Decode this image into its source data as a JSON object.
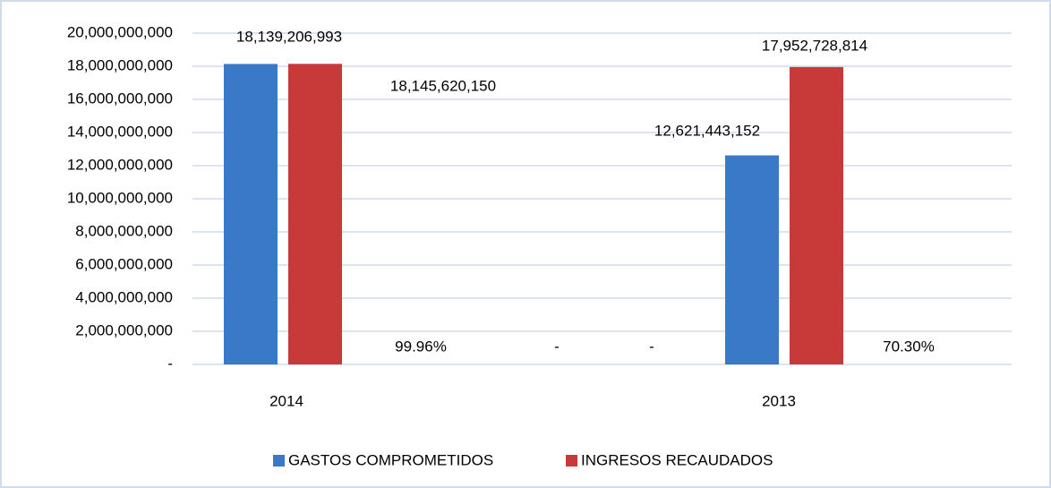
{
  "chart_data": {
    "type": "bar",
    "categories": [
      "2014",
      "2013"
    ],
    "series": [
      {
        "name": "GASTOS COMPROMETIDOS",
        "color": "#3a78c8",
        "values": [
          18139206993,
          12621443152
        ],
        "value_labels": [
          "18,139,206,993",
          "12,621,443,152"
        ]
      },
      {
        "name": "INGRESOS RECAUDADOS",
        "color": "#c83a3a",
        "values": [
          18145620150,
          17952728814
        ],
        "value_labels": [
          "18,145,620,150",
          "17,952,728,814"
        ]
      }
    ],
    "annotations": [
      "99.96%",
      "-",
      "-",
      "70.30%"
    ],
    "ylim": [
      0,
      20000000000
    ],
    "yticks": [
      {
        "value": 0,
        "label": "-"
      },
      {
        "value": 2000000000,
        "label": "2,000,000,000"
      },
      {
        "value": 4000000000,
        "label": "4,000,000,000"
      },
      {
        "value": 6000000000,
        "label": "6,000,000,000"
      },
      {
        "value": 8000000000,
        "label": "8,000,000,000"
      },
      {
        "value": 10000000000,
        "label": "10,000,000,000"
      },
      {
        "value": 12000000000,
        "label": "12,000,000,000"
      },
      {
        "value": 14000000000,
        "label": "14,000,000,000"
      },
      {
        "value": 16000000000,
        "label": "16,000,000,000"
      },
      {
        "value": 18000000000,
        "label": "18,000,000,000"
      },
      {
        "value": 20000000000,
        "label": "20,000,000,000"
      }
    ],
    "grid": true,
    "legend": "bottom"
  }
}
